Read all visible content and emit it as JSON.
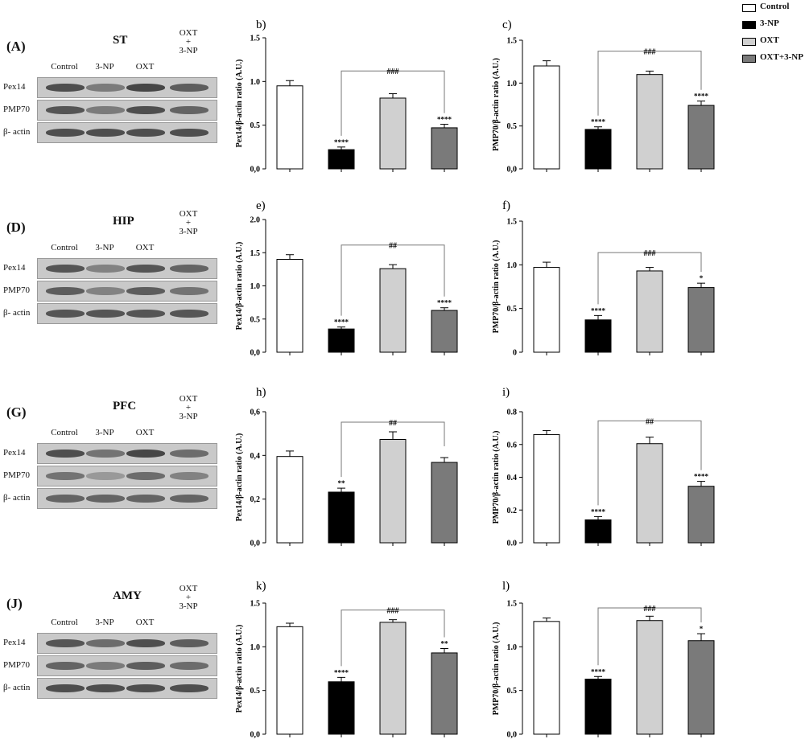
{
  "colors": {
    "Control": "#ffffff",
    "3-NP": "#000000",
    "OXT": "#d0d0d0",
    "OXT+3-NP": "#7a7a7a"
  },
  "legend": [
    "Control",
    "3-NP",
    "OXT",
    "OXT+3-NP"
  ],
  "blots": [
    {
      "label": "(A)",
      "region": "ST",
      "lanes": [
        "Control",
        "3-NP",
        "OXT",
        "OXT\n+\n3-NP"
      ],
      "rows": [
        "Pex14",
        "PMP70",
        "β- actin"
      ]
    },
    {
      "label": "(D)",
      "region": "HIP",
      "lanes": [
        "Control",
        "3-NP",
        "OXT",
        "OXT\n+\n3-NP"
      ],
      "rows": [
        "Pex14",
        "PMP70",
        "β- actin"
      ]
    },
    {
      "label": "(G)",
      "region": "PFC",
      "lanes": [
        "Control",
        "3-NP",
        "OXT",
        "OXT\n+\n3-NP"
      ],
      "rows": [
        "Pex14",
        "PMP70",
        "β- actin"
      ]
    },
    {
      "label": "(J)",
      "region": "AMY",
      "lanes": [
        "Control",
        "3-NP",
        "OXT",
        "OXT\n+\n3-NP"
      ],
      "rows": [
        "Pex14",
        "PMP70",
        "β- actin"
      ]
    }
  ],
  "chart_data": [
    {
      "panel": "b)",
      "type": "bar",
      "categories": [
        "Control",
        "3-NP",
        "OXT",
        "OXT+3-NP"
      ],
      "values": [
        0.95,
        0.22,
        0.81,
        0.47
      ],
      "errors": [
        0.06,
        0.03,
        0.05,
        0.04
      ],
      "ylabel": "Pex14/β-actin ratio (A.U.)",
      "ylim": [
        0,
        1.5
      ],
      "yticks": [
        "0,0",
        "0.5",
        "1.0",
        "1.5"
      ],
      "annotations": [
        "",
        "****",
        "",
        "****"
      ],
      "bracket": "###"
    },
    {
      "panel": "c)",
      "type": "bar",
      "categories": [
        "Control",
        "3-NP",
        "OXT",
        "OXT+3-NP"
      ],
      "values": [
        1.2,
        0.46,
        1.1,
        0.74
      ],
      "errors": [
        0.06,
        0.03,
        0.04,
        0.05
      ],
      "ylabel": "PMP70/β-actin ratio (A.U.)",
      "ylim": [
        0,
        1.5
      ],
      "yticks": [
        "0,0",
        "0.5",
        "1.0",
        "1.5"
      ],
      "annotations": [
        "",
        "****",
        "",
        "****"
      ],
      "bracket": "###"
    },
    {
      "panel": "e)",
      "type": "bar",
      "categories": [
        "Control",
        "3-NP",
        "OXT",
        "OXT+3-NP"
      ],
      "values": [
        1.4,
        0.35,
        1.26,
        0.63
      ],
      "errors": [
        0.07,
        0.03,
        0.06,
        0.04
      ],
      "ylabel": "Pex14/β-actin ratio (A.U.)",
      "ylim": [
        0,
        2.0
      ],
      "yticks": [
        "0,0",
        "0.5",
        "1.0",
        "1.5",
        "2.0"
      ],
      "annotations": [
        "",
        "****",
        "",
        "****"
      ],
      "bracket": "##"
    },
    {
      "panel": "f)",
      "type": "bar",
      "categories": [
        "Control",
        "3-NP",
        "OXT",
        "OXT+3-NP"
      ],
      "values": [
        0.97,
        0.37,
        0.93,
        0.74
      ],
      "errors": [
        0.06,
        0.05,
        0.04,
        0.05
      ],
      "ylabel": "PMP70/β-actin ratio (A.U.)",
      "ylim": [
        0,
        1.5
      ],
      "yticks": [
        "0",
        "0.5",
        "1.0",
        "1.5"
      ],
      "annotations": [
        "",
        "****",
        "",
        "*"
      ],
      "bracket": "###"
    },
    {
      "panel": "h)",
      "type": "bar",
      "categories": [
        "Control",
        "3-NP",
        "OXT",
        "OXT+3-NP"
      ],
      "values": [
        0.395,
        0.232,
        0.473,
        0.368
      ],
      "errors": [
        0.025,
        0.018,
        0.035,
        0.022
      ],
      "ylabel": "Pex14/β-actin ratio (A.U.)",
      "ylim": [
        0,
        0.6
      ],
      "yticks": [
        "0,0",
        "0,2",
        "0,4",
        "0,6"
      ],
      "annotations": [
        "",
        "**",
        "",
        ""
      ],
      "bracket": "##"
    },
    {
      "panel": "i)",
      "type": "bar",
      "categories": [
        "Control",
        "3-NP",
        "OXT",
        "OXT+3-NP"
      ],
      "values": [
        0.66,
        0.14,
        0.605,
        0.345
      ],
      "errors": [
        0.025,
        0.02,
        0.04,
        0.03
      ],
      "ylabel": "PMP70/β-actin ratio (A.U.)",
      "ylim": [
        0,
        0.8
      ],
      "yticks": [
        "0.0",
        "0.2",
        "0.4",
        "0.6",
        "0.8"
      ],
      "annotations": [
        "",
        "****",
        "",
        "****"
      ],
      "bracket": "##"
    },
    {
      "panel": "k)",
      "type": "bar",
      "categories": [
        "Control",
        "3-NP",
        "OXT",
        "OXT+3-NP"
      ],
      "values": [
        1.23,
        0.6,
        1.28,
        0.93
      ],
      "errors": [
        0.04,
        0.05,
        0.03,
        0.05
      ],
      "ylabel": "Pex14/β-actin ratio (A.U.)",
      "ylim": [
        0,
        1.5
      ],
      "yticks": [
        "0,0",
        "0.5",
        "1.0",
        "1.5"
      ],
      "annotations": [
        "",
        "****",
        "",
        "**"
      ],
      "bracket": "###"
    },
    {
      "panel": "l)",
      "type": "bar",
      "categories": [
        "Control",
        "3-NP",
        "OXT",
        "OXT+3-NP"
      ],
      "values": [
        1.29,
        0.63,
        1.3,
        1.07
      ],
      "errors": [
        0.04,
        0.03,
        0.05,
        0.08
      ],
      "ylabel": "PMP70/β-actin ratio (A.U.)",
      "ylim": [
        0,
        1.5
      ],
      "yticks": [
        "0,0",
        "0.5",
        "1.0",
        "1.5"
      ],
      "annotations": [
        "",
        "****",
        "",
        "*"
      ],
      "bracket": "###"
    }
  ]
}
